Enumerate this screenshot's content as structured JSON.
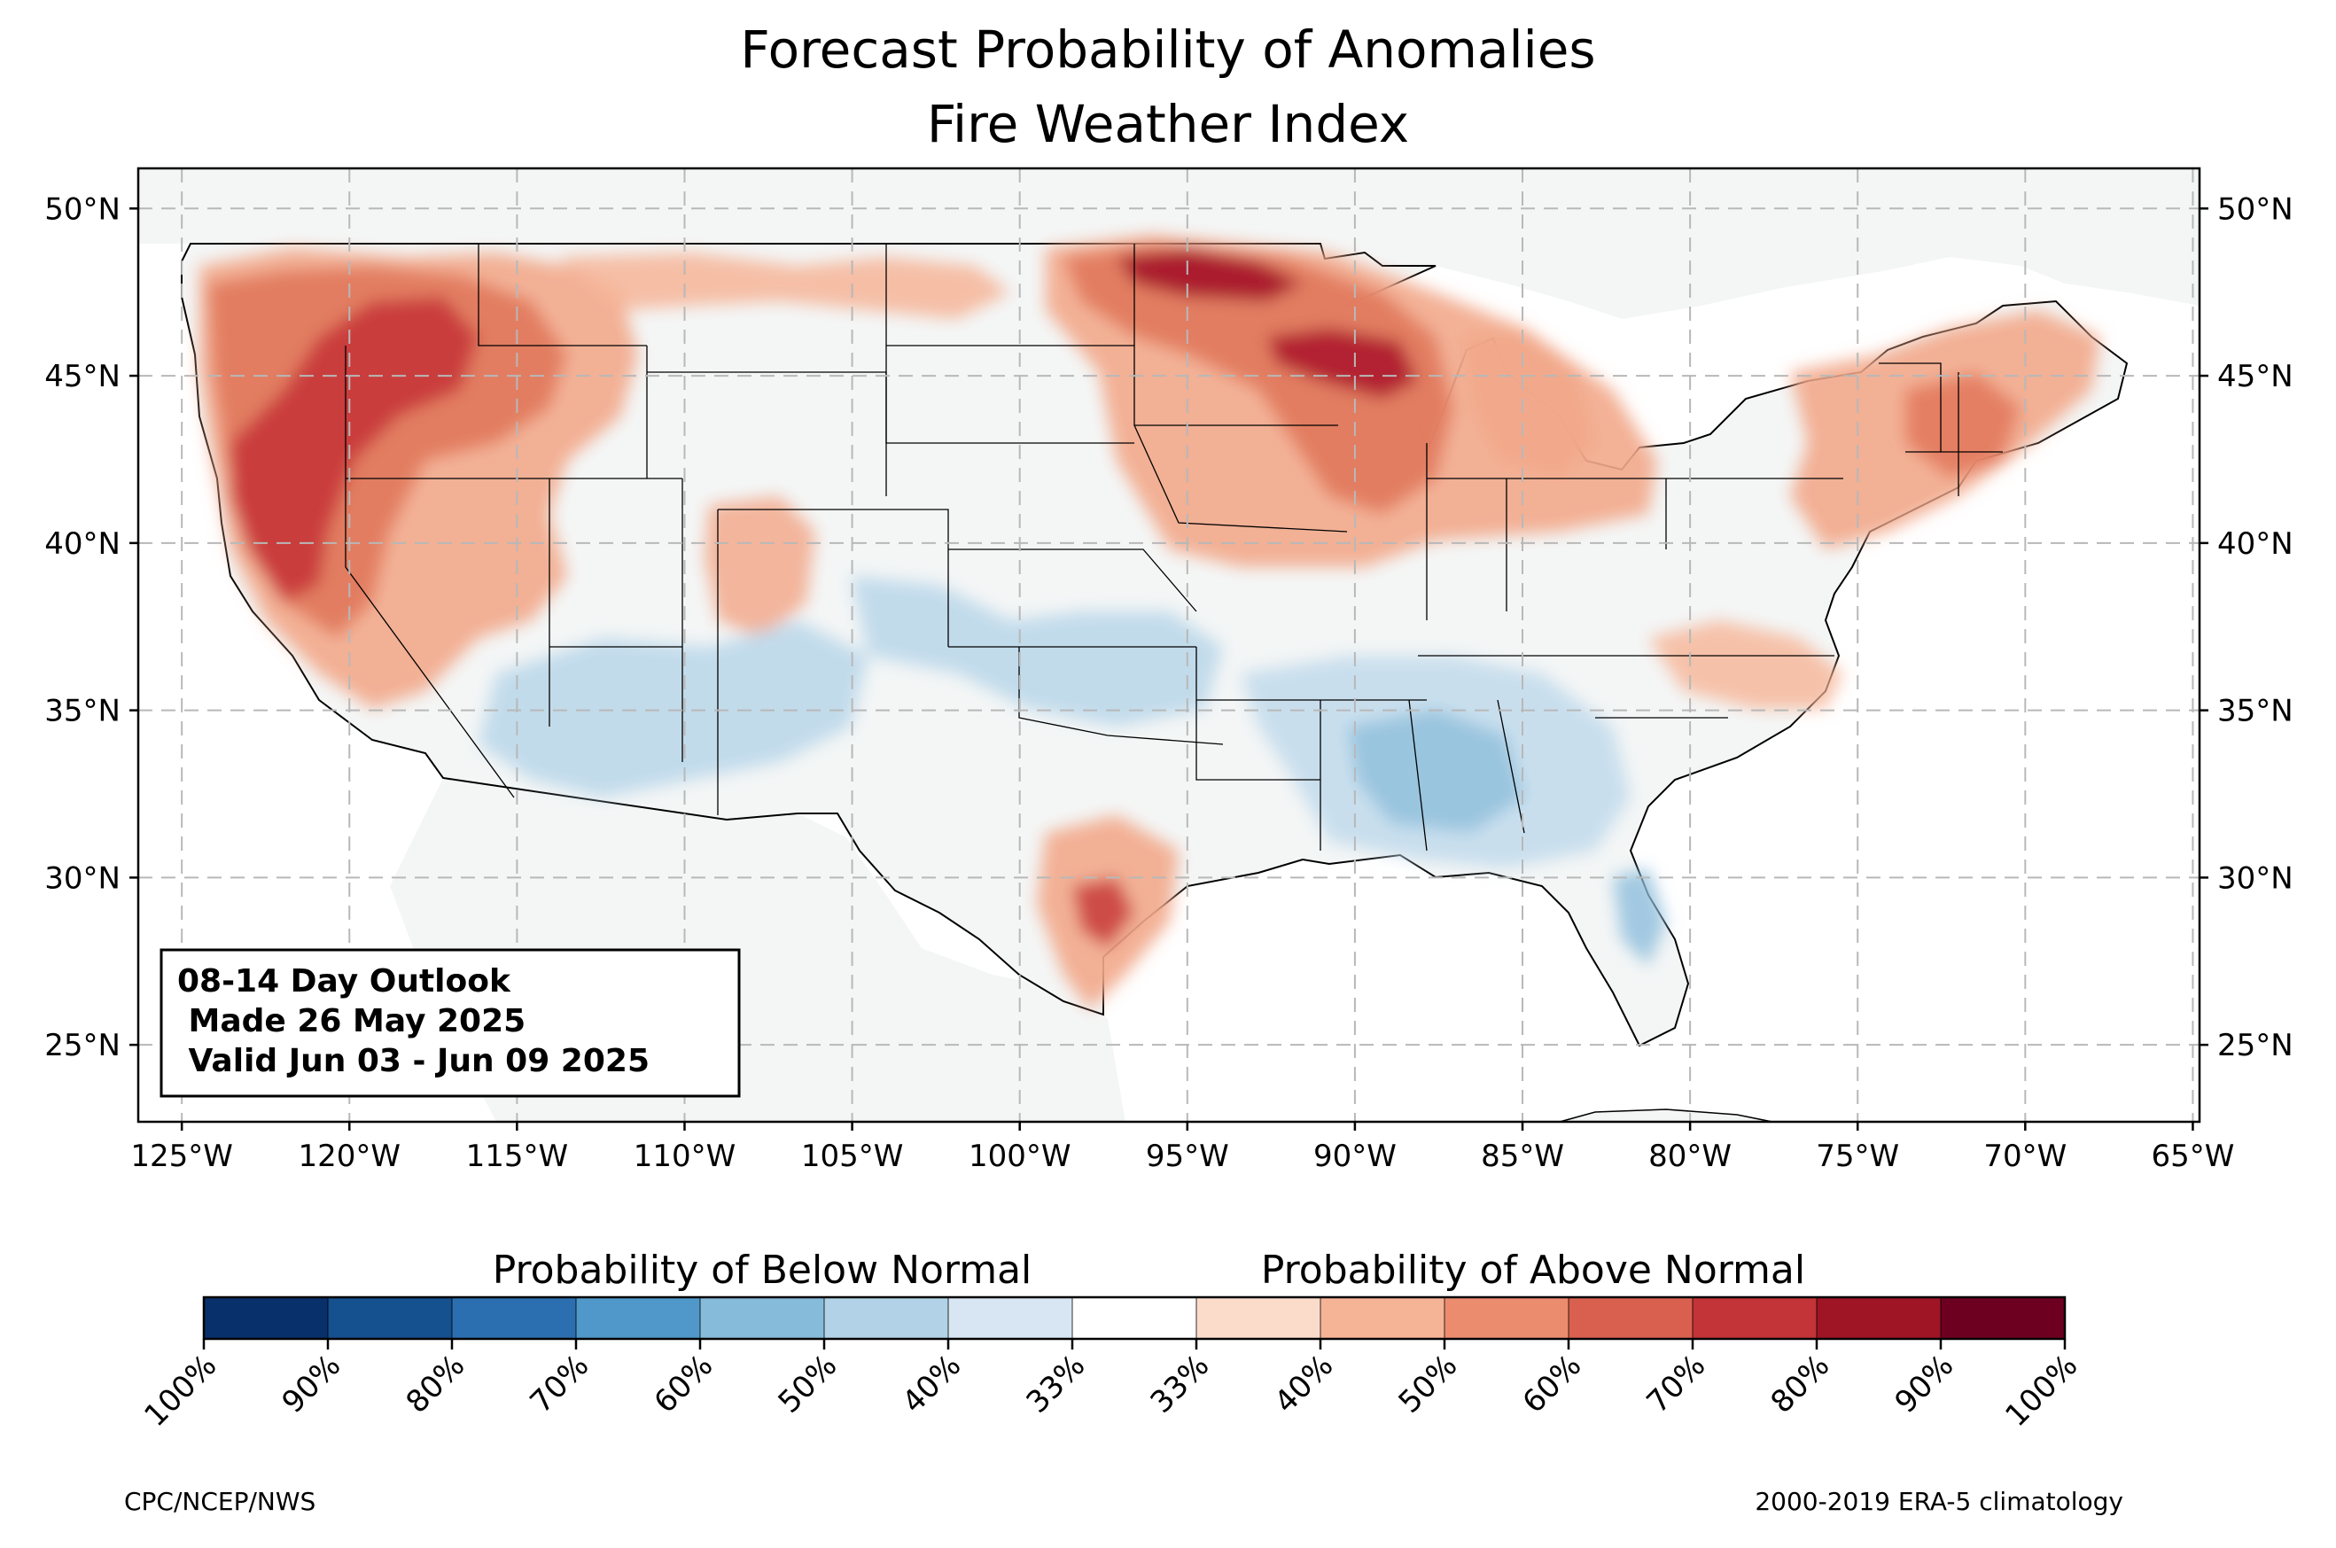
{
  "title": {
    "line1": "Forecast Probability of Anomalies",
    "line2": "Fire Weather Index"
  },
  "map": {
    "lon_ticks": [
      "125°W",
      "120°W",
      "115°W",
      "110°W",
      "105°W",
      "100°W",
      "95°W",
      "90°W",
      "85°W",
      "80°W",
      "75°W",
      "70°W",
      "65°W"
    ],
    "lat_ticks": [
      "50°N",
      "45°N",
      "40°N",
      "35°N",
      "30°N",
      "25°N"
    ],
    "lon_values": [
      -125,
      -120,
      -115,
      -110,
      -105,
      -100,
      -95,
      -90,
      -85,
      -80,
      -75,
      -70,
      -65
    ],
    "lat_values": [
      50,
      45,
      40,
      35,
      30,
      25
    ],
    "extent": {
      "lon_min": -126.3,
      "lon_max": -64.8,
      "lat_min": 22.7,
      "lat_max": 51.2
    },
    "grid": true
  },
  "info_box": {
    "line1": "08-14 Day Outlook",
    "line2": " Made 26 May 2025",
    "line3": " Valid Jun 03 - Jun 09 2025"
  },
  "colorbar": {
    "below_label": "Probability of Below Normal",
    "above_label": "Probability of Above Normal",
    "tick_labels": [
      "100%",
      "90%",
      "80%",
      "70%",
      "60%",
      "50%",
      "40%",
      "33%",
      "33%",
      "40%",
      "50%",
      "60%",
      "70%",
      "80%",
      "90%",
      "100%"
    ],
    "colors": [
      "#08306b",
      "#15508f",
      "#2c6fb0",
      "#4f98c9",
      "#86bbda",
      "#b2d3e7",
      "#d7e6f2",
      "#ffffff",
      "#fbdccb",
      "#f6b496",
      "#ec8c6e",
      "#d9604f",
      "#c23437",
      "#9f1526",
      "#6d0020"
    ]
  },
  "footer": {
    "left": "CPC/NCEP/NWS",
    "right": "2000-2019 ERA-5 climatology"
  }
}
